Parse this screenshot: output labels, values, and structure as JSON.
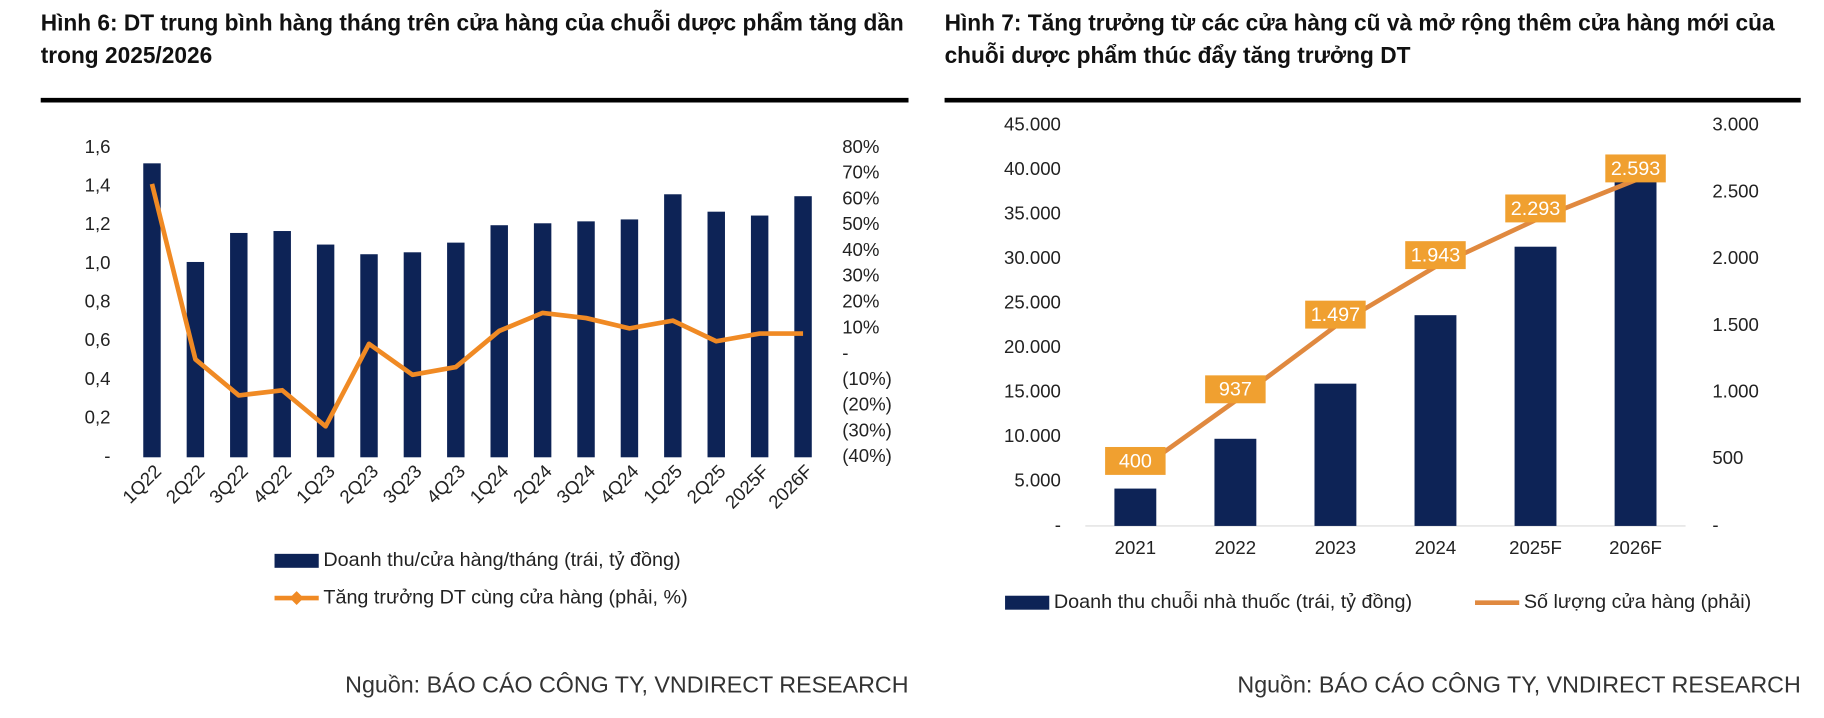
{
  "chart_data": [
    {
      "type": "combo",
      "title": "Hình 6: DT trung bình hàng tháng trên cửa hàng của chuỗi dược phẩm tăng dần trong 2025/2026",
      "source": "Nguồn: BÁO CÁO CÔNG TY, VNDIRECT RESEARCH",
      "categories": [
        "1Q22",
        "2Q22",
        "3Q22",
        "4Q22",
        "1Q23",
        "2Q23",
        "3Q23",
        "4Q23",
        "1Q24",
        "2Q24",
        "3Q24",
        "4Q24",
        "1Q25",
        "2Q25",
        "2025F",
        "2026F"
      ],
      "series": [
        {
          "name": "Doanh thu/cửa hàng/tháng (trái, tỷ đồng)",
          "type": "bar",
          "color": "#0d2356",
          "values": [
            1.52,
            1.01,
            1.16,
            1.17,
            1.1,
            1.05,
            1.06,
            1.11,
            1.2,
            1.21,
            1.22,
            1.23,
            1.36,
            1.27,
            1.25,
            1.35
          ]
        },
        {
          "name": "Tăng trưởng DT cùng cửa hàng (phải, %)",
          "type": "line",
          "axis": "y2",
          "color": "#f08a24",
          "marker": "diamond",
          "values": [
            66,
            -2,
            -16,
            -14,
            -28,
            4,
            -8,
            -5,
            9,
            16,
            14,
            10,
            13,
            5,
            8,
            8
          ]
        }
      ],
      "ylim": [
        0,
        1.6
      ],
      "yticks": [
        {
          "value": 0,
          "label": "-"
        },
        {
          "value": 0.2,
          "label": "0,2"
        },
        {
          "value": 0.4,
          "label": "0,4"
        },
        {
          "value": 0.6,
          "label": "0,6"
        },
        {
          "value": 0.8,
          "label": "0,8"
        },
        {
          "value": 1.0,
          "label": "1,0"
        },
        {
          "value": 1.2,
          "label": "1,2"
        },
        {
          "value": 1.4,
          "label": "1,4"
        },
        {
          "value": 1.6,
          "label": "1,6"
        }
      ],
      "y2lim": [
        -40,
        80
      ],
      "y2ticks": [
        {
          "value": -40,
          "label": "(40%)"
        },
        {
          "value": -30,
          "label": "(30%)"
        },
        {
          "value": -20,
          "label": "(20%)"
        },
        {
          "value": -10,
          "label": "(10%)"
        },
        {
          "value": 0,
          "label": "-"
        },
        {
          "value": 10,
          "label": "10%"
        },
        {
          "value": 20,
          "label": "20%"
        },
        {
          "value": 30,
          "label": "30%"
        },
        {
          "value": 40,
          "label": "40%"
        },
        {
          "value": 50,
          "label": "50%"
        },
        {
          "value": 60,
          "label": "60%"
        },
        {
          "value": 70,
          "label": "70%"
        },
        {
          "value": 80,
          "label": "80%"
        }
      ]
    },
    {
      "type": "combo",
      "title": "Hình 7: Tăng trưởng từ các cửa hàng cũ và mở rộng thêm cửa hàng mới của chuỗi dược phẩm thúc đẩy tăng trưởng DT",
      "source": "Nguồn: BÁO CÁO CÔNG TY, VNDIRECT RESEARCH",
      "categories": [
        "2021",
        "2022",
        "2023",
        "2024",
        "2025F",
        "2026F"
      ],
      "series": [
        {
          "name": "Doanh thu chuỗi nhà thuốc (trái, tỷ đồng)",
          "type": "bar",
          "color": "#0d2356",
          "values": [
            4200,
            9800,
            16000,
            23700,
            31400,
            39500
          ]
        },
        {
          "name": "Số lượng cửa hàng (phải)",
          "type": "line",
          "axis": "y2",
          "color": "#e0893f",
          "label_color": "#f0a030",
          "values": [
            400,
            937,
            1497,
            1943,
            2293,
            2593
          ],
          "value_labels": [
            "400",
            "937",
            "1.497",
            "1.943",
            "2.293",
            "2.593"
          ]
        }
      ],
      "ylim": [
        0,
        45000
      ],
      "yticks": [
        {
          "value": 0,
          "label": "-"
        },
        {
          "value": 5000,
          "label": "5.000"
        },
        {
          "value": 10000,
          "label": "10.000"
        },
        {
          "value": 15000,
          "label": "15.000"
        },
        {
          "value": 20000,
          "label": "20.000"
        },
        {
          "value": 25000,
          "label": "25.000"
        },
        {
          "value": 30000,
          "label": "30.000"
        },
        {
          "value": 35000,
          "label": "35.000"
        },
        {
          "value": 40000,
          "label": "40.000"
        },
        {
          "value": 45000,
          "label": "45.000"
        }
      ],
      "y2lim": [
        0,
        3000
      ],
      "y2ticks": [
        {
          "value": 0,
          "label": "-"
        },
        500,
        {
          "value": 1000,
          "label": "1.000"
        },
        {
          "value": 1500,
          "label": "1.500"
        },
        {
          "value": 2000,
          "label": "2.000"
        },
        {
          "value": 2500,
          "label": "2.500"
        },
        {
          "value": 3000,
          "label": "3.000"
        }
      ]
    }
  ]
}
